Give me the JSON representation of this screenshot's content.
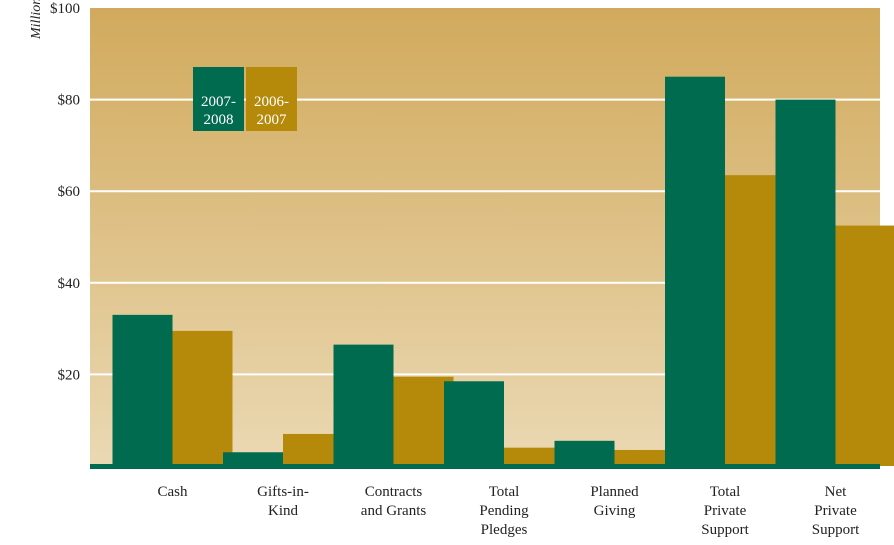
{
  "chart_data": {
    "type": "bar",
    "title": "",
    "xlabel": "",
    "ylabel": "Millions",
    "ylim": [
      0,
      100
    ],
    "y_ticks": [
      "$20",
      "$40",
      "$60",
      "$80",
      "$100"
    ],
    "y_tick_values": [
      20,
      40,
      60,
      80,
      100
    ],
    "grid": true,
    "legend_position": "top-left",
    "categories": [
      [
        "Cash"
      ],
      [
        "Gifts-in-",
        "Kind"
      ],
      [
        "Contracts",
        "and Grants"
      ],
      [
        "Total",
        "Pending",
        "Pledges"
      ],
      [
        "Planned",
        "Giving"
      ],
      [
        "Total",
        "Private",
        "Support"
      ],
      [
        "Net",
        "Private",
        "Support"
      ]
    ],
    "series": [
      {
        "name": [
          "2007-",
          "2008"
        ],
        "color": "#006b4f",
        "values": [
          33,
          3,
          26.5,
          18.5,
          5.5,
          85,
          80
        ]
      },
      {
        "name": [
          "2006-",
          "2007"
        ],
        "color": "#b58a0a",
        "values": [
          29.5,
          7,
          19.5,
          4,
          3.5,
          63.5,
          52.5
        ]
      }
    ],
    "colors": {
      "bg_top": "#d1aa5c",
      "bg_bottom": "#ebd9b4",
      "gridline": "#ffffff",
      "baseline": "#006b4f"
    }
  }
}
